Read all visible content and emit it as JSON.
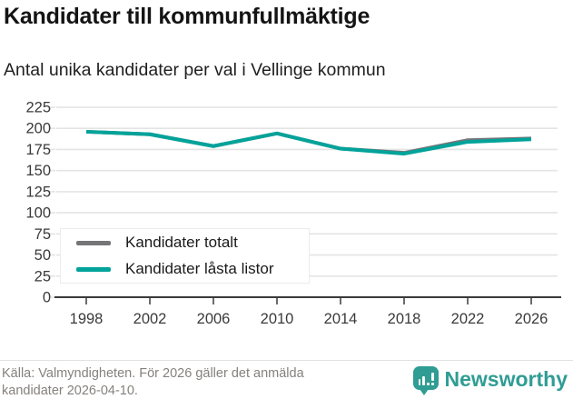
{
  "header": {
    "title": "Kandidater till kommunfullmäktige",
    "subtitle": "Antal unika kandidater per val i Vellinge kommun"
  },
  "chart_data": {
    "type": "line",
    "x": [
      1998,
      2002,
      2006,
      2010,
      2014,
      2018,
      2022,
      2026
    ],
    "series": [
      {
        "name": "Kandidater totalt",
        "color": "#757578",
        "values": [
          196,
          193,
          179,
          194,
          176,
          171,
          186,
          188
        ]
      },
      {
        "name": "Kandidater låsta listor",
        "color": "#00a39a",
        "values": [
          196,
          193,
          179,
          194,
          176,
          170,
          184,
          187
        ]
      }
    ],
    "ylim": [
      0,
      225
    ],
    "yticks": [
      0,
      25,
      50,
      75,
      100,
      125,
      150,
      175,
      200,
      225
    ],
    "grid": "horizontal",
    "legend_position": "inside-lower-left",
    "line_width": 4
  },
  "footer": {
    "source_line1": "Källa: Valmyndigheten. För 2026 gäller det anmälda",
    "source_line2": "kandidater 2026-04-10.",
    "brand": "Newsworthy"
  },
  "colors": {
    "accent_teal": "#00a39a",
    "series_gray": "#757578",
    "brand_teal": "#2f9d94",
    "grid": "#e4e4e4",
    "axis": "#3a3a3a",
    "tick_label": "#3a3a3a",
    "footer_text": "#85817d"
  }
}
